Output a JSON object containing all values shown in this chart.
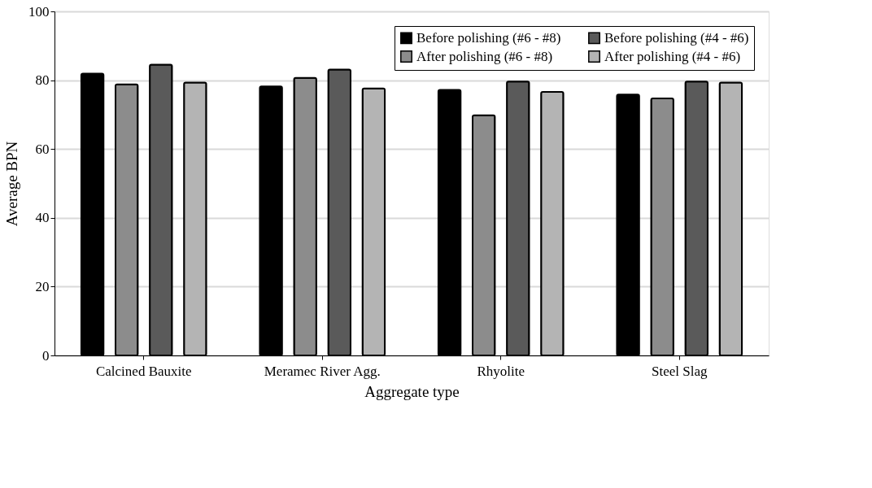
{
  "chart_data": {
    "type": "bar",
    "xlabel": "Aggregate type",
    "ylabel": "Average BPN",
    "categories": [
      "Calcined Bauxite",
      "Meramec River Agg.",
      "Rhyolite",
      "Steel Slag"
    ],
    "series": [
      {
        "name": "Before polishing (#6 - #8)",
        "color": "#000000",
        "values": [
          81.9,
          78.2,
          77.2,
          75.8
        ]
      },
      {
        "name": "After polishing (#6 - #8)",
        "color": "#8c8c8c",
        "values": [
          78.8,
          80.7,
          69.8,
          74.7
        ]
      },
      {
        "name": "Before polishing (#4 - #6)",
        "color": "#5a5a5a",
        "values": [
          84.5,
          83.1,
          79.6,
          79.6
        ]
      },
      {
        "name": "After polishing (#4 - #6)",
        "color": "#b4b4b4",
        "values": [
          79.3,
          77.6,
          76.6,
          79.3
        ]
      }
    ],
    "ylim": [
      0,
      100
    ],
    "yticks": [
      0,
      20,
      40,
      60,
      80,
      100
    ],
    "grid": "y",
    "legend": "top right"
  }
}
